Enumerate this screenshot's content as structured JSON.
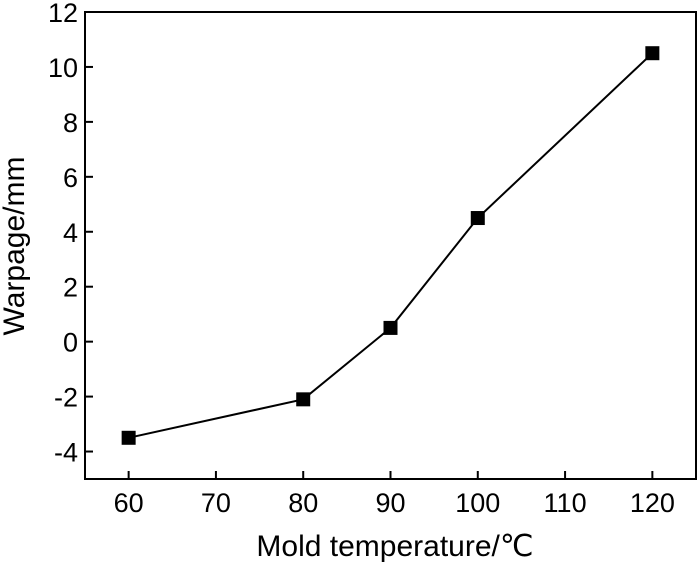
{
  "chart_data": {
    "type": "line",
    "title": "",
    "xlabel": "Mold temperature/℃",
    "ylabel": "Warpage/mm",
    "xlim": [
      55,
      125
    ],
    "ylim": [
      -5,
      12
    ],
    "xticks": [
      60,
      70,
      80,
      90,
      100,
      110,
      120
    ],
    "yticks": [
      -4,
      -2,
      0,
      2,
      4,
      6,
      8,
      10,
      12
    ],
    "grid": false,
    "legend": "none",
    "marker": "square",
    "line_color": "#000000",
    "marker_color": "#000000",
    "series": [
      {
        "x": [
          60,
          80,
          90,
          100,
          120
        ],
        "y": [
          -3.5,
          -2.1,
          0.5,
          4.5,
          10.5
        ]
      }
    ]
  }
}
